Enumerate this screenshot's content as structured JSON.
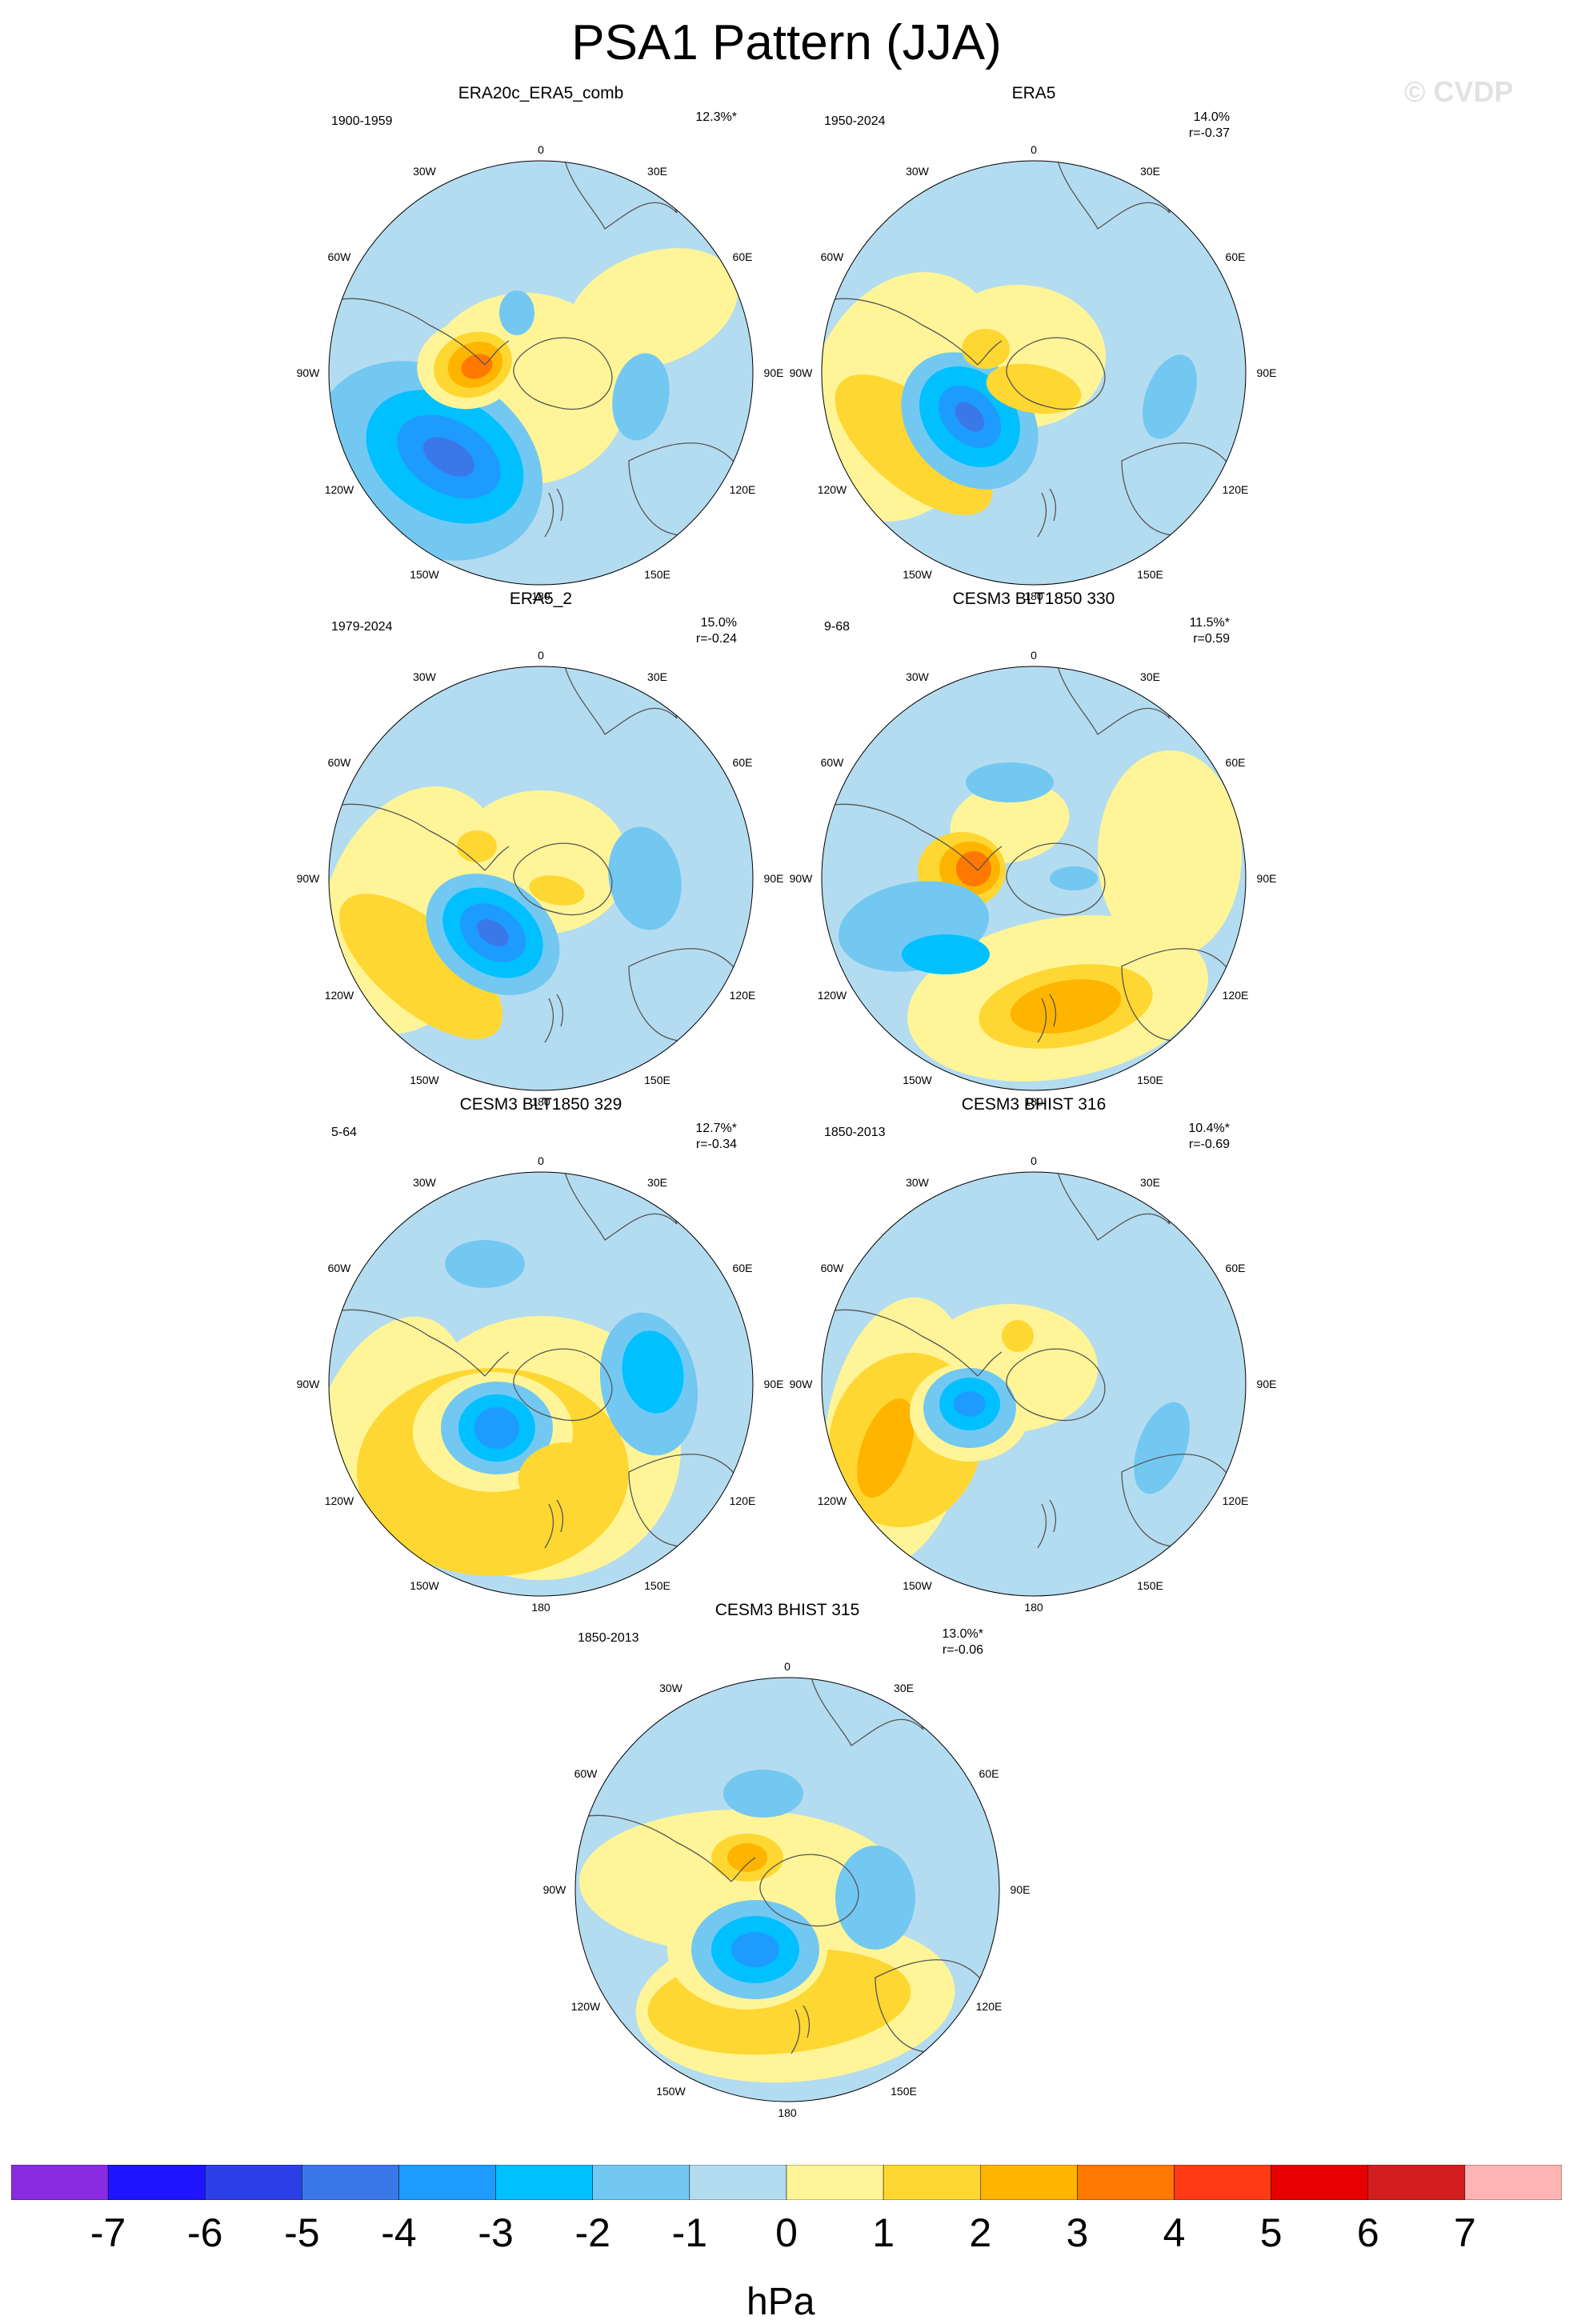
{
  "title": "PSA1 Pattern (JJA)",
  "watermark": "© CVDP",
  "lon_labels": [
    "0",
    "30E",
    "60E",
    "90E",
    "120E",
    "150E",
    "180",
    "150W",
    "120W",
    "90W",
    "60W",
    "30W"
  ],
  "panels": [
    {
      "title": "ERA20c_ERA5_comb",
      "period": "1900-1959",
      "variance": "12.3%*",
      "corr": ""
    },
    {
      "title": "ERA5",
      "period": "1950-2024",
      "variance": "14.0%",
      "corr": "r=-0.37"
    },
    {
      "title": "ERA5_2",
      "period": "1979-2024",
      "variance": "15.0%",
      "corr": "r=-0.24"
    },
    {
      "title": "CESM3 BLT1850 330",
      "period": "9-68",
      "variance": "11.5%*",
      "corr": "r=0.59"
    },
    {
      "title": "CESM3 BLT1850 329",
      "period": "5-64",
      "variance": "12.7%*",
      "corr": "r=-0.34"
    },
    {
      "title": "CESM3 BHIST 316",
      "period": "1850-2013",
      "variance": "10.4%*",
      "corr": "r=-0.69"
    },
    {
      "title": "CESM3 BHIST 315",
      "period": "1850-2013",
      "variance": "13.0%*",
      "corr": "r=-0.06"
    }
  ],
  "colorbar": {
    "colors": [
      "#8a2be2",
      "#1e14ff",
      "#2c3fe6",
      "#3a78ea",
      "#1e9bff",
      "#00c0ff",
      "#73c8f2",
      "#b4dcf0",
      "#fff598",
      "#ffd732",
      "#ffb400",
      "#ff7800",
      "#ff3a14",
      "#e60000",
      "#d21e1e",
      "#ffb4b4"
    ],
    "ticks": [
      "-7",
      "-6",
      "-5",
      "-4",
      "-3",
      "-2",
      "-1",
      "0",
      "1",
      "2",
      "3",
      "4",
      "5",
      "6",
      "7"
    ],
    "units": "hPa"
  }
}
